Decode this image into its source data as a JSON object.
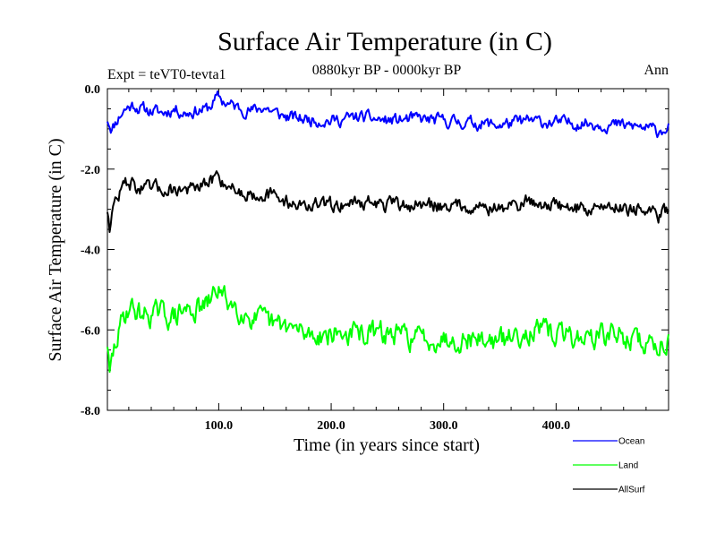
{
  "chart_data": {
    "type": "line",
    "title": "Surface Air Temperature (in C)",
    "subtitle_left": "Expt = teVT0-tevta1",
    "subtitle_center": "0880kyr BP - 0000kyr BP",
    "subtitle_right": "Ann",
    "xlabel": "Time (in years since start)",
    "ylabel": "Surface Air Temperature (in C)",
    "xlim": [
      1,
      500
    ],
    "ylim": [
      -8.0,
      0.0
    ],
    "x_ticks": [
      100,
      200,
      300,
      400
    ],
    "x_tick_labels": [
      "100.0",
      "200.0",
      "300.0",
      "400.0"
    ],
    "y_ticks": [
      0,
      -2,
      -4,
      -6,
      -8
    ],
    "y_tick_labels": [
      "0.0",
      "-2.0",
      "-4.0",
      "-6.0",
      "-8.0"
    ],
    "grid": false,
    "legend_position": "bottom-right",
    "series": [
      {
        "name": "Ocean",
        "color": "#0000ff",
        "x": [
          1,
          5,
          10,
          15,
          20,
          25,
          30,
          40,
          50,
          60,
          70,
          80,
          90,
          100,
          103,
          110,
          120,
          130,
          140,
          150,
          160,
          175,
          200,
          225,
          250,
          275,
          300,
          325,
          350,
          375,
          400,
          425,
          450,
          475,
          490,
          500
        ],
        "values": [
          -0.75,
          -1.0,
          -0.75,
          -0.55,
          -0.45,
          -0.4,
          -0.5,
          -0.55,
          -0.6,
          -0.5,
          -0.6,
          -0.55,
          -0.5,
          -0.2,
          -0.3,
          -0.4,
          -0.5,
          -0.55,
          -0.45,
          -0.6,
          -0.7,
          -0.75,
          -0.8,
          -0.7,
          -0.8,
          -0.75,
          -0.8,
          -0.85,
          -0.9,
          -0.8,
          -0.85,
          -0.85,
          -0.9,
          -0.95,
          -1.05,
          -0.95
        ]
      },
      {
        "name": "Land",
        "color": "#00ff00",
        "x": [
          1,
          3,
          5,
          8,
          12,
          15,
          20,
          25,
          30,
          40,
          50,
          60,
          70,
          80,
          90,
          100,
          103,
          110,
          120,
          130,
          140,
          150,
          160,
          175,
          200,
          225,
          250,
          275,
          300,
          325,
          350,
          375,
          400,
          425,
          450,
          475,
          490,
          500
        ],
        "values": [
          -6.3,
          -7.2,
          -6.8,
          -6.4,
          -6.0,
          -5.7,
          -5.4,
          -5.5,
          -5.6,
          -5.6,
          -5.6,
          -5.7,
          -5.5,
          -5.5,
          -5.4,
          -4.9,
          -5.2,
          -5.3,
          -5.5,
          -5.7,
          -5.8,
          -5.9,
          -5.9,
          -6.1,
          -6.1,
          -6.1,
          -6.1,
          -6.2,
          -6.2,
          -6.2,
          -6.3,
          -6.0,
          -6.1,
          -6.2,
          -6.1,
          -6.3,
          -6.4,
          -6.2
        ]
      },
      {
        "name": "AllSurf",
        "color": "#000000",
        "x": [
          1,
          3,
          5,
          8,
          12,
          15,
          20,
          25,
          30,
          40,
          50,
          60,
          70,
          80,
          90,
          100,
          103,
          110,
          120,
          130,
          140,
          150,
          160,
          175,
          200,
          225,
          250,
          275,
          300,
          325,
          350,
          375,
          400,
          425,
          450,
          475,
          490,
          500
        ],
        "values": [
          -3.0,
          -3.4,
          -3.1,
          -2.8,
          -2.6,
          -2.4,
          -2.3,
          -2.4,
          -2.5,
          -2.5,
          -2.5,
          -2.5,
          -2.5,
          -2.5,
          -2.4,
          -2.1,
          -2.3,
          -2.4,
          -2.6,
          -2.6,
          -2.6,
          -2.7,
          -2.8,
          -2.9,
          -2.9,
          -2.8,
          -2.9,
          -2.9,
          -2.9,
          -2.9,
          -3.0,
          -2.8,
          -2.9,
          -3.0,
          -2.9,
          -3.0,
          -3.2,
          -3.0
        ]
      }
    ]
  }
}
